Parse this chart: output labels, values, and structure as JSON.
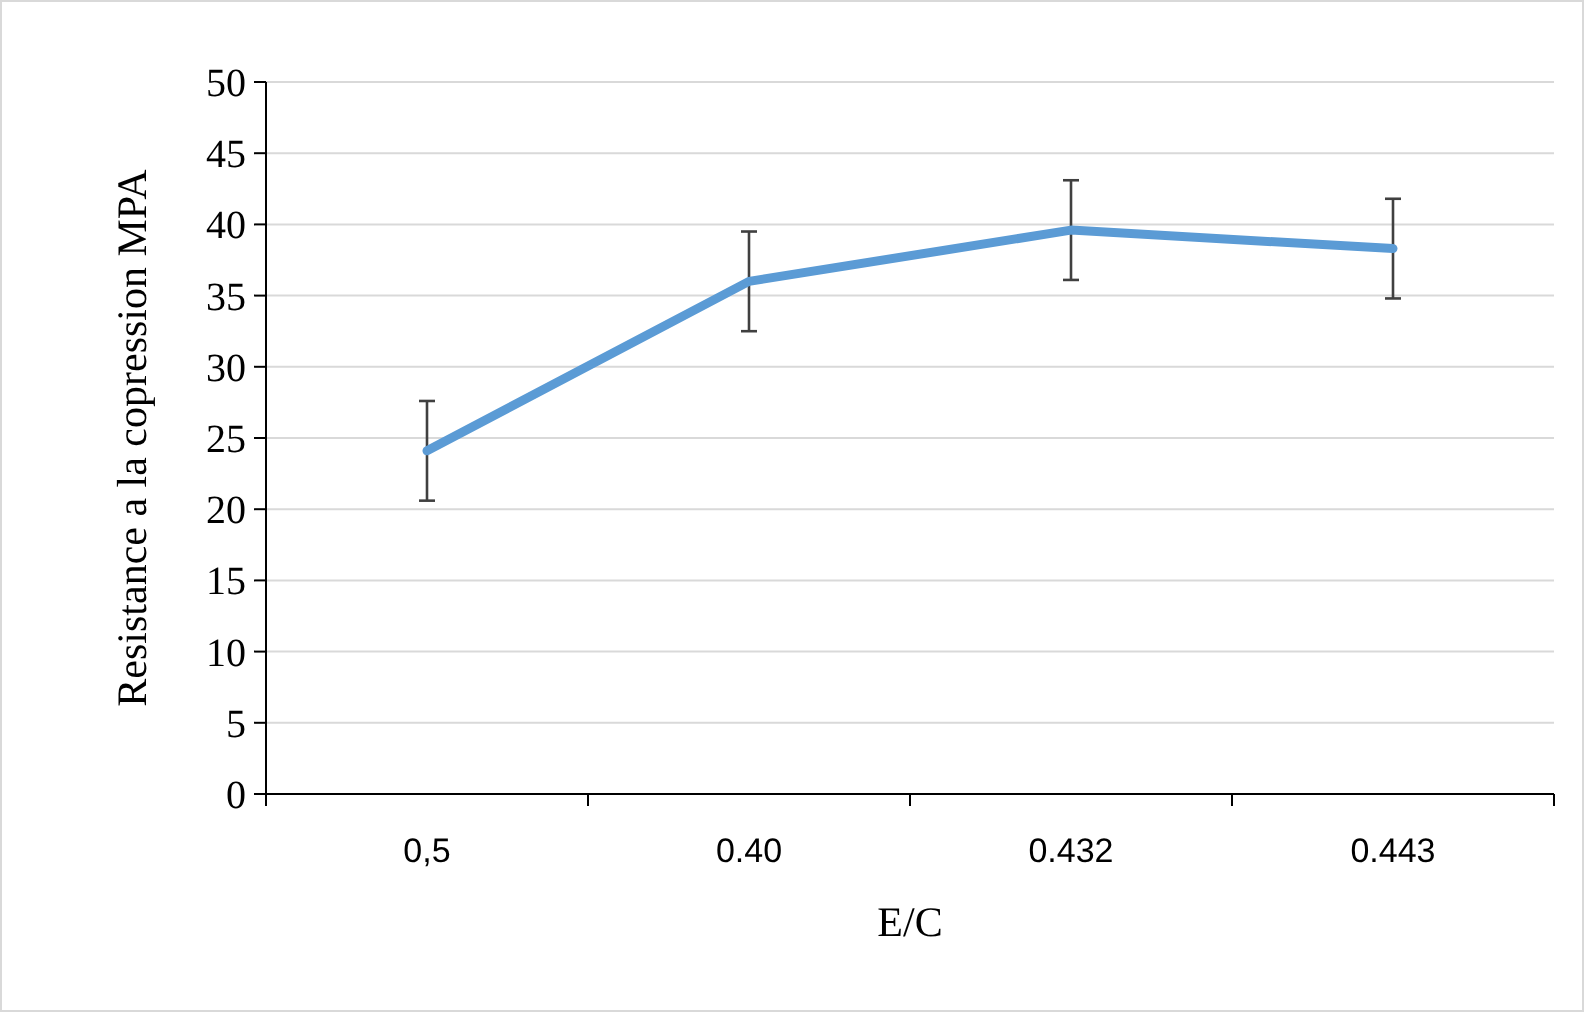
{
  "chart_data": {
    "type": "line",
    "xlabel": "E/C",
    "ylabel": "Resistance a la copression MPA",
    "categories": [
      "0,5",
      "0.40",
      "0.432",
      "0.443"
    ],
    "series": [
      {
        "color": "#5b9bd5",
        "values": [
          24.1,
          36,
          39.6,
          38.3
        ],
        "errors": [
          3.5,
          3.5,
          3.5,
          3.5
        ]
      }
    ],
    "ylim": [
      0,
      50
    ],
    "yticks": [
      0,
      5,
      10,
      15,
      20,
      25,
      30,
      35,
      40,
      45,
      50
    ],
    "grid": "y"
  }
}
